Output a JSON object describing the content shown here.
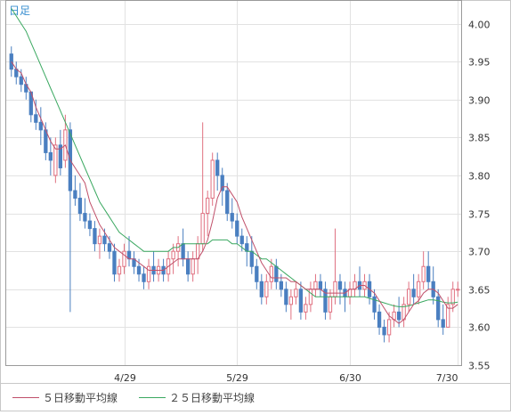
{
  "chart_data": {
    "type": "candlestick",
    "period_label": "日足",
    "x_tick_labels": [
      "4/29",
      "5/29",
      "6/30",
      "7/30"
    ],
    "y_tick_labels": [
      "4.00",
      "3.95",
      "3.90",
      "3.85",
      "3.80",
      "3.75",
      "3.70",
      "3.65",
      "3.60",
      "3.55"
    ],
    "ylim": [
      3.55,
      4.03
    ],
    "grid": true,
    "legend_position": "bottom-left",
    "series": [
      {
        "name": "５日移動平均線",
        "color": "#c0506a"
      },
      {
        "name": "２５日移動平均線",
        "color": "#3aa860"
      }
    ],
    "colors": {
      "up": "#e07080",
      "down": "#4a7fc0",
      "grid": "#e2e2e2",
      "axis_text": "#333333",
      "period_label": "#3a8fd0"
    },
    "candles_ohlc": [
      [
        3.96,
        3.97,
        3.93,
        3.94
      ],
      [
        3.94,
        3.95,
        3.92,
        3.93
      ],
      [
        3.93,
        3.94,
        3.91,
        3.92
      ],
      [
        3.92,
        3.93,
        3.9,
        3.91
      ],
      [
        3.91,
        3.91,
        3.87,
        3.88
      ],
      [
        3.88,
        3.9,
        3.86,
        3.87
      ],
      [
        3.87,
        3.89,
        3.84,
        3.86
      ],
      [
        3.86,
        3.87,
        3.82,
        3.83
      ],
      [
        3.83,
        3.85,
        3.8,
        3.82
      ],
      [
        3.8,
        3.85,
        3.79,
        3.84
      ],
      [
        3.84,
        3.86,
        3.8,
        3.81
      ],
      [
        3.82,
        3.88,
        3.81,
        3.86
      ],
      [
        3.86,
        3.87,
        3.62,
        3.78
      ],
      [
        3.78,
        3.8,
        3.76,
        3.77
      ],
      [
        3.77,
        3.79,
        3.74,
        3.75
      ],
      [
        3.75,
        3.77,
        3.73,
        3.74
      ],
      [
        3.74,
        3.75,
        3.72,
        3.73
      ],
      [
        3.73,
        3.74,
        3.7,
        3.71
      ],
      [
        3.71,
        3.73,
        3.69,
        3.72
      ],
      [
        3.72,
        3.73,
        3.7,
        3.71
      ],
      [
        3.71,
        3.72,
        3.69,
        3.7
      ],
      [
        3.7,
        3.71,
        3.66,
        3.67
      ],
      [
        3.67,
        3.69,
        3.66,
        3.68
      ],
      [
        3.68,
        3.71,
        3.67,
        3.7
      ],
      [
        3.7,
        3.72,
        3.68,
        3.69
      ],
      [
        3.69,
        3.7,
        3.67,
        3.68
      ],
      [
        3.68,
        3.69,
        3.66,
        3.67
      ],
      [
        3.67,
        3.68,
        3.65,
        3.66
      ],
      [
        3.66,
        3.69,
        3.65,
        3.68
      ],
      [
        3.68,
        3.7,
        3.66,
        3.67
      ],
      [
        3.67,
        3.69,
        3.66,
        3.68
      ],
      [
        3.68,
        3.69,
        3.66,
        3.67
      ],
      [
        3.67,
        3.7,
        3.66,
        3.69
      ],
      [
        3.69,
        3.71,
        3.67,
        3.7
      ],
      [
        3.7,
        3.72,
        3.68,
        3.71
      ],
      [
        3.71,
        3.73,
        3.68,
        3.69
      ],
      [
        3.69,
        3.7,
        3.66,
        3.67
      ],
      [
        3.67,
        3.7,
        3.66,
        3.69
      ],
      [
        3.69,
        3.72,
        3.67,
        3.71
      ],
      [
        3.71,
        3.87,
        3.7,
        3.75
      ],
      [
        3.75,
        3.78,
        3.72,
        3.77
      ],
      [
        3.77,
        3.83,
        3.76,
        3.82
      ],
      [
        3.82,
        3.83,
        3.78,
        3.8
      ],
      [
        3.8,
        3.81,
        3.76,
        3.78
      ],
      [
        3.78,
        3.79,
        3.74,
        3.75
      ],
      [
        3.75,
        3.77,
        3.73,
        3.74
      ],
      [
        3.74,
        3.75,
        3.71,
        3.72
      ],
      [
        3.72,
        3.73,
        3.7,
        3.71
      ],
      [
        3.71,
        3.72,
        3.68,
        3.7
      ],
      [
        3.7,
        3.72,
        3.67,
        3.68
      ],
      [
        3.68,
        3.69,
        3.65,
        3.66
      ],
      [
        3.66,
        3.67,
        3.63,
        3.64
      ],
      [
        3.64,
        3.67,
        3.63,
        3.66
      ],
      [
        3.66,
        3.69,
        3.65,
        3.68
      ],
      [
        3.68,
        3.69,
        3.65,
        3.66
      ],
      [
        3.66,
        3.67,
        3.64,
        3.65
      ],
      [
        3.65,
        3.66,
        3.62,
        3.63
      ],
      [
        3.63,
        3.65,
        3.61,
        3.64
      ],
      [
        3.64,
        3.66,
        3.63,
        3.65
      ],
      [
        3.65,
        3.66,
        3.61,
        3.62
      ],
      [
        3.62,
        3.64,
        3.61,
        3.63
      ],
      [
        3.63,
        3.66,
        3.62,
        3.65
      ],
      [
        3.65,
        3.67,
        3.64,
        3.66
      ],
      [
        3.66,
        3.67,
        3.64,
        3.65
      ],
      [
        3.65,
        3.66,
        3.61,
        3.62
      ],
      [
        3.62,
        3.65,
        3.61,
        3.64
      ],
      [
        3.64,
        3.73,
        3.63,
        3.66
      ],
      [
        3.66,
        3.67,
        3.63,
        3.65
      ],
      [
        3.65,
        3.66,
        3.62,
        3.64
      ],
      [
        3.64,
        3.66,
        3.63,
        3.65
      ],
      [
        3.65,
        3.67,
        3.64,
        3.66
      ],
      [
        3.66,
        3.68,
        3.64,
        3.65
      ],
      [
        3.65,
        3.67,
        3.64,
        3.66
      ],
      [
        3.66,
        3.67,
        3.63,
        3.64
      ],
      [
        3.64,
        3.65,
        3.61,
        3.62
      ],
      [
        3.62,
        3.63,
        3.59,
        3.6
      ],
      [
        3.6,
        3.61,
        3.58,
        3.59
      ],
      [
        3.59,
        3.62,
        3.58,
        3.61
      ],
      [
        3.61,
        3.63,
        3.6,
        3.62
      ],
      [
        3.62,
        3.64,
        3.6,
        3.61
      ],
      [
        3.61,
        3.64,
        3.6,
        3.63
      ],
      [
        3.63,
        3.66,
        3.62,
        3.65
      ],
      [
        3.65,
        3.67,
        3.63,
        3.64
      ],
      [
        3.64,
        3.67,
        3.63,
        3.66
      ],
      [
        3.66,
        3.7,
        3.65,
        3.68
      ],
      [
        3.68,
        3.7,
        3.65,
        3.66
      ],
      [
        3.66,
        3.68,
        3.63,
        3.64
      ],
      [
        3.64,
        3.65,
        3.6,
        3.61
      ],
      [
        3.61,
        3.63,
        3.59,
        3.6
      ],
      [
        3.6,
        3.64,
        3.6,
        3.63
      ],
      [
        3.63,
        3.66,
        3.62,
        3.65
      ],
      [
        3.65,
        3.66,
        3.64,
        3.65
      ]
    ],
    "ma5": [
      3.95,
      3.94,
      3.935,
      3.92,
      3.91,
      3.89,
      3.875,
      3.86,
      3.845,
      3.835,
      3.835,
      3.84,
      3.82,
      3.81,
      3.8,
      3.79,
      3.765,
      3.75,
      3.735,
      3.725,
      3.715,
      3.705,
      3.7,
      3.695,
      3.69,
      3.69,
      3.685,
      3.68,
      3.675,
      3.675,
      3.675,
      3.675,
      3.68,
      3.685,
      3.69,
      3.69,
      3.69,
      3.69,
      3.69,
      3.7,
      3.715,
      3.74,
      3.77,
      3.785,
      3.785,
      3.775,
      3.765,
      3.745,
      3.73,
      3.715,
      3.7,
      3.685,
      3.675,
      3.665,
      3.665,
      3.665,
      3.665,
      3.66,
      3.66,
      3.655,
      3.65,
      3.65,
      3.65,
      3.65,
      3.645,
      3.645,
      3.645,
      3.645,
      3.645,
      3.65,
      3.65,
      3.655,
      3.655,
      3.65,
      3.645,
      3.635,
      3.625,
      3.615,
      3.61,
      3.605,
      3.61,
      3.62,
      3.63,
      3.635,
      3.645,
      3.65,
      3.65,
      3.645,
      3.635,
      3.625,
      3.625,
      3.63
    ],
    "ma25": [
      4.02,
      4.01,
      4.0,
      3.99,
      3.975,
      3.96,
      3.945,
      3.93,
      3.915,
      3.9,
      3.885,
      3.87,
      3.855,
      3.84,
      3.825,
      3.81,
      3.795,
      3.78,
      3.765,
      3.755,
      3.745,
      3.735,
      3.725,
      3.72,
      3.715,
      3.71,
      3.705,
      3.7,
      3.7,
      3.7,
      3.7,
      3.7,
      3.7,
      3.705,
      3.705,
      3.71,
      3.71,
      3.71,
      3.71,
      3.71,
      3.71,
      3.715,
      3.715,
      3.715,
      3.715,
      3.71,
      3.71,
      3.705,
      3.7,
      3.7,
      3.695,
      3.69,
      3.69,
      3.685,
      3.68,
      3.675,
      3.67,
      3.665,
      3.66,
      3.655,
      3.65,
      3.645,
      3.64,
      3.64,
      3.64,
      3.64,
      3.64,
      3.64,
      3.64,
      3.64,
      3.64,
      3.64,
      3.64,
      3.638,
      3.636,
      3.634,
      3.632,
      3.63,
      3.628,
      3.627,
      3.627,
      3.628,
      3.63,
      3.632,
      3.634,
      3.636,
      3.636,
      3.635,
      3.633,
      3.632,
      3.632,
      3.633
    ]
  }
}
